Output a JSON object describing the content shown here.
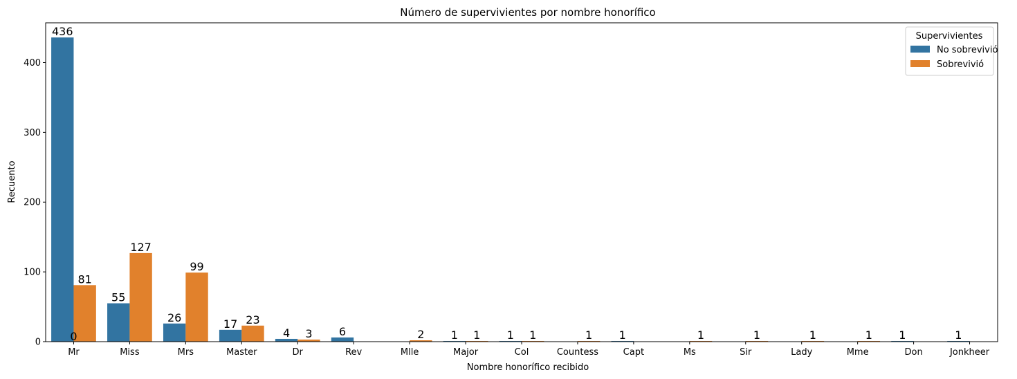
{
  "chart_data": {
    "type": "bar",
    "title": "Número de supervivientes por nombre honorífico",
    "xlabel": "Nombre honorífico recibido",
    "ylabel": "Recuento",
    "categories": [
      "Mr",
      "Miss",
      "Mrs",
      "Master",
      "Dr",
      "Rev",
      "Mlle",
      "Major",
      "Col",
      "Countess",
      "Capt",
      "Ms",
      "Sir",
      "Lady",
      "Mme",
      "Don",
      "Jonkheer"
    ],
    "series": [
      {
        "name": "No sobrevivió",
        "color": "#3274a1",
        "values": [
          436,
          55,
          26,
          17,
          4,
          6,
          null,
          1,
          1,
          null,
          1,
          null,
          null,
          null,
          null,
          1,
          1
        ],
        "labels": [
          "436",
          "55",
          "26",
          "17",
          "4",
          "6",
          "",
          "1",
          "1",
          "",
          "1",
          "",
          "",
          "",
          "",
          "1",
          "1"
        ]
      },
      {
        "name": "Sobrevivió",
        "color": "#e1812c",
        "values": [
          81,
          127,
          99,
          23,
          3,
          null,
          2,
          1,
          1,
          1,
          null,
          1,
          1,
          1,
          1,
          null,
          null
        ],
        "labels": [
          "81",
          "127",
          "99",
          "23",
          "3",
          "",
          "2",
          "1",
          "1",
          "1",
          "",
          "1",
          "1",
          "1",
          "1",
          "",
          ""
        ]
      }
    ],
    "extra_labels": [
      {
        "category": "Mr",
        "text": "0"
      }
    ],
    "ylim": [
      0,
      457
    ],
    "yticks": [
      0,
      100,
      200,
      300,
      400
    ],
    "ytick_labels": [
      "0",
      "100",
      "200",
      "300",
      "400"
    ],
    "grid": false,
    "legend": {
      "title": "Supervivientes",
      "placement": "top-right"
    }
  }
}
